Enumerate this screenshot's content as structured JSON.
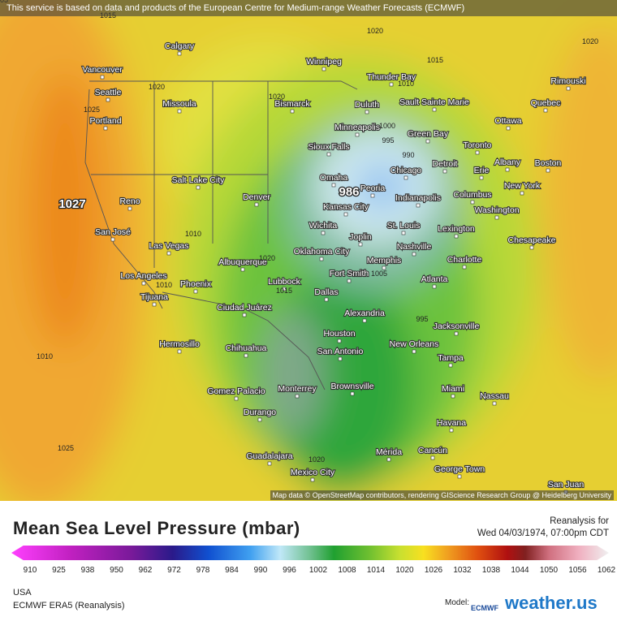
{
  "header": {
    "notice": "This service is based on data and products of the European Centre for Medium-range Weather Forecasts (ECMWF)"
  },
  "map": {
    "attribution": "Map data © OpenStreetMap contributors, rendering GIScience Research Group @ Heidelberg University",
    "cities": [
      "Calgary",
      "Winnipeg",
      "Thunder Bay",
      "Vancouver",
      "Seattle",
      "Missoula",
      "Bismarck",
      "Duluth",
      "Sault Sainte Marie",
      "Rimouski",
      "Quebec",
      "Portland",
      "Minneapolis",
      "Green Bay",
      "Ottawa",
      "Sioux Falls",
      "Toronto",
      "Omaha",
      "Chicago",
      "Detroit",
      "Erie",
      "Albany",
      "Boston",
      "Salt Lake City",
      "Peoria",
      "Reno",
      "Denver",
      "Kansas City",
      "Indianapolis",
      "Columbus",
      "New York",
      "Washington",
      "Wichita",
      "Joplin",
      "St. Louis",
      "Lexington",
      "San José",
      "Las Vegas",
      "Oklahoma City",
      "Nashville",
      "Chesapeake",
      "Albuquerque",
      "Memphis",
      "Charlotte",
      "Los Angeles",
      "Phoenix",
      "Fort Smith",
      "Lubbock",
      "Atlanta",
      "Tijuana",
      "Dallas",
      "Ciudad Juárez",
      "Alexandria",
      "Jacksonville",
      "Houston",
      "Hermosillo",
      "Chihuahua",
      "San Antonio",
      "New Orleans",
      "Tampa",
      "Brownsville",
      "Miami",
      "Nassau",
      "Gomez Palacio",
      "Monterrey",
      "Durango",
      "Havana",
      "Guadalajara",
      "Mérida",
      "Cancún",
      "George Town",
      "Mexico City",
      "San Juan"
    ],
    "isobars": [
      1015,
      1020,
      1015,
      1020,
      1010,
      1020,
      1020,
      1025,
      1000,
      995,
      990,
      1010,
      1020,
      1010,
      1015,
      1005,
      995,
      1010,
      1025,
      1020,
      1005
    ],
    "centers": [
      1027,
      986
    ]
  },
  "legend": {
    "title": "Mean Sea Level Pressure (mbar)",
    "ticks": [
      910,
      925,
      938,
      950,
      962,
      972,
      978,
      984,
      990,
      996,
      1002,
      1008,
      1014,
      1020,
      1026,
      1032,
      1038,
      1044,
      1050,
      1056,
      1062
    ]
  },
  "valid": {
    "label": "Reanalysis for",
    "time": "Wed 04/03/1974, 07:00pm CDT"
  },
  "footer": {
    "region": "USA",
    "model": "ECMWF ERA5 (Reanalysis)",
    "model_label": "Model:",
    "model_logo": "ECMWF",
    "brand": "weather.us"
  }
}
